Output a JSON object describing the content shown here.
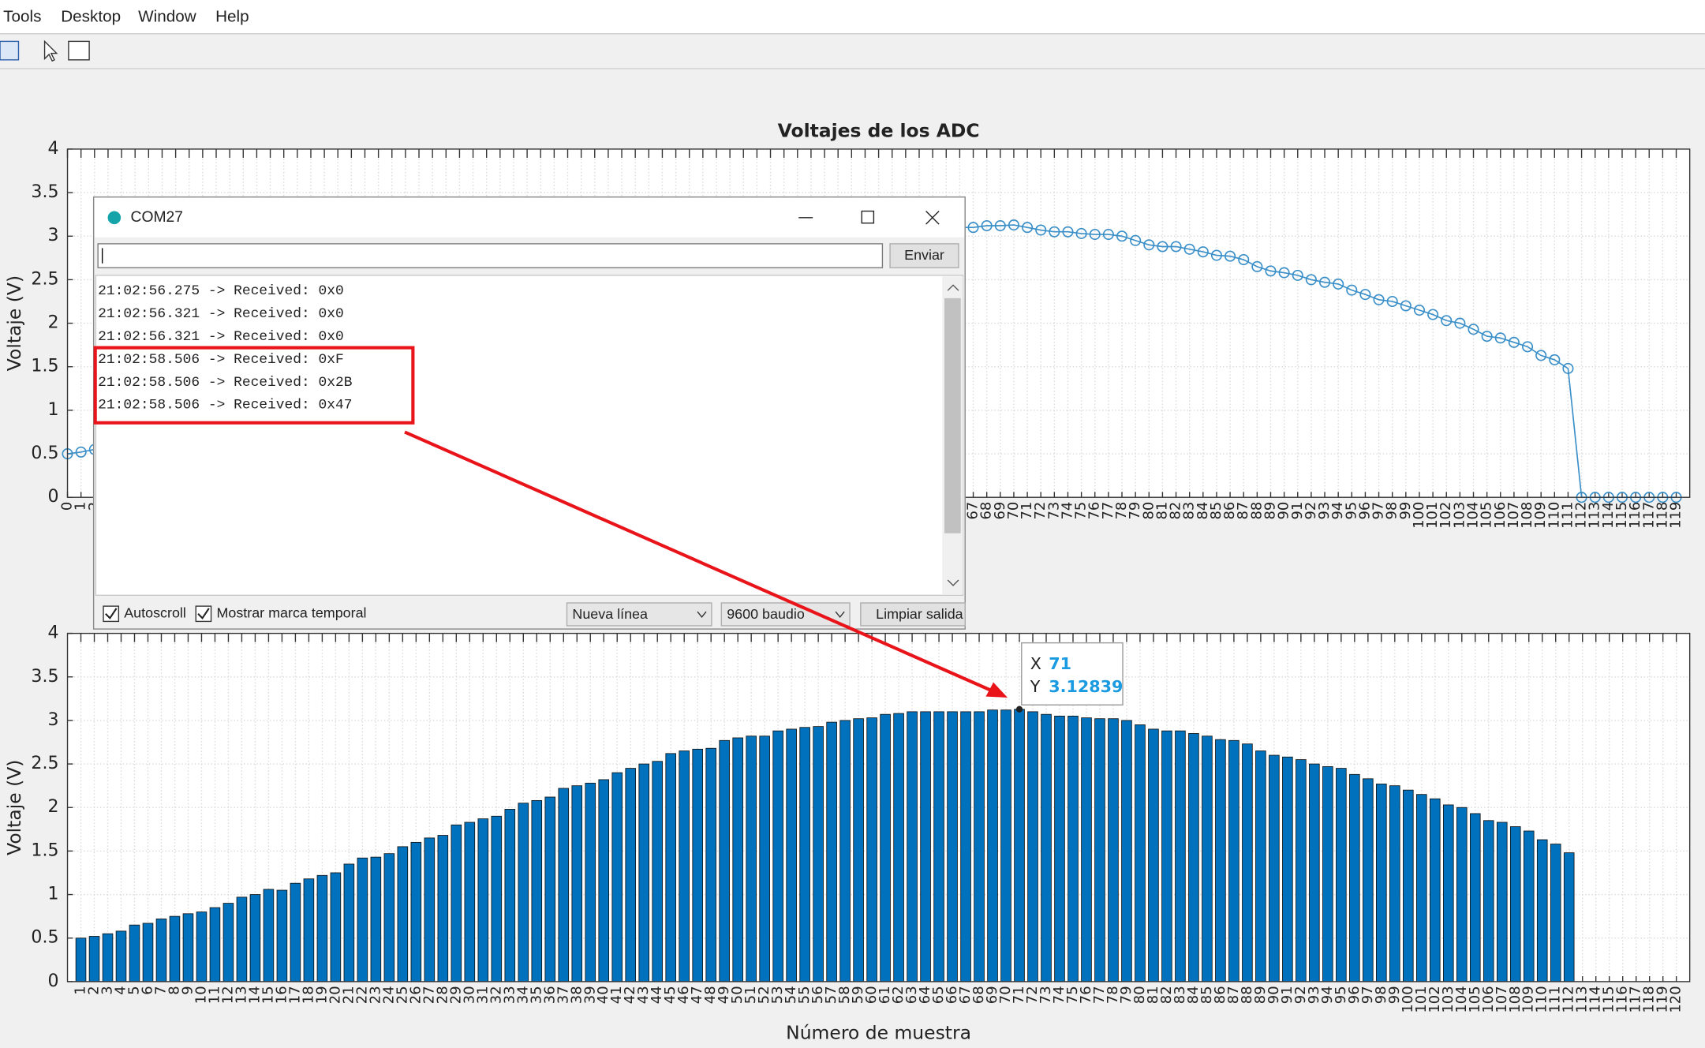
{
  "menu": [
    "Tools",
    "Desktop",
    "Window",
    "Help"
  ],
  "chart_data": [
    {
      "type": "line",
      "title": "Voltajes de los ADC",
      "ylabel": "Voltaje (V)",
      "color": "#3a8fc8",
      "grid": true,
      "xlim": [
        0,
        120
      ],
      "ylim": [
        0,
        4
      ],
      "yticks": [
        0,
        0.5,
        1,
        1.5,
        2,
        2.5,
        3,
        3.5,
        4
      ],
      "x": [
        0,
        1,
        2,
        3,
        4,
        5,
        6,
        7,
        8,
        9,
        10,
        11,
        12,
        13,
        14,
        15,
        16,
        17,
        18,
        19,
        20,
        21,
        22,
        23,
        24,
        25,
        26,
        27,
        28,
        29,
        30,
        31,
        32,
        33,
        34,
        35,
        36,
        37,
        38,
        39,
        40,
        41,
        42,
        43,
        44,
        45,
        46,
        47,
        48,
        49,
        50,
        51,
        52,
        53,
        54,
        55,
        56,
        57,
        58,
        59,
        60,
        61,
        62,
        63,
        64,
        65,
        66,
        67,
        68,
        69,
        70,
        71,
        72,
        73,
        74,
        75,
        76,
        77,
        78,
        79,
        80,
        81,
        82,
        83,
        84,
        85,
        86,
        87,
        88,
        89,
        90,
        91,
        92,
        93,
        94,
        95,
        96,
        97,
        98,
        99,
        100,
        101,
        102,
        103,
        104,
        105,
        106,
        107,
        108,
        109,
        110,
        111,
        112,
        113,
        114,
        115,
        116,
        117,
        118,
        119
      ],
      "values": [
        0.5,
        0.52,
        0.55,
        0.58,
        0.65,
        0.67,
        0.72,
        0.75,
        0.78,
        0.8,
        0.85,
        0.9,
        0.97,
        1.0,
        1.06,
        1.05,
        1.13,
        1.18,
        1.22,
        1.25,
        1.35,
        1.42,
        1.43,
        1.47,
        1.55,
        1.6,
        1.65,
        1.68,
        1.8,
        1.83,
        1.87,
        1.9,
        1.98,
        2.05,
        2.08,
        2.12,
        2.22,
        2.25,
        2.28,
        2.32,
        2.4,
        2.45,
        2.5,
        2.53,
        2.62,
        2.65,
        2.67,
        2.68,
        2.77,
        2.8,
        2.82,
        2.82,
        2.88,
        2.9,
        2.92,
        2.93,
        2.98,
        3.0,
        3.02,
        3.03,
        3.07,
        3.08,
        3.1,
        3.1,
        3.1,
        3.1,
        3.1,
        3.1,
        3.12,
        3.12,
        3.12839,
        3.1,
        3.07,
        3.05,
        3.05,
        3.03,
        3.02,
        3.02,
        3.0,
        2.95,
        2.9,
        2.88,
        2.88,
        2.85,
        2.82,
        2.78,
        2.77,
        2.73,
        2.65,
        2.6,
        2.58,
        2.55,
        2.5,
        2.47,
        2.45,
        2.38,
        2.33,
        2.27,
        2.25,
        2.2,
        2.15,
        2.1,
        2.03,
        2.0,
        1.93,
        1.85,
        1.83,
        1.78,
        1.73,
        1.63,
        1.58,
        1.48,
        0,
        0,
        0,
        0,
        0,
        0,
        0,
        0
      ]
    },
    {
      "type": "bar",
      "ylabel": "Voltaje (V)",
      "xlabel": "Número de muestra",
      "color": "#0072bd",
      "grid": true,
      "xlim": [
        0,
        121
      ],
      "ylim": [
        0,
        4
      ],
      "yticks": [
        0,
        0.5,
        1,
        1.5,
        2,
        2.5,
        3,
        3.5,
        4
      ],
      "x": [
        1,
        2,
        3,
        4,
        5,
        6,
        7,
        8,
        9,
        10,
        11,
        12,
        13,
        14,
        15,
        16,
        17,
        18,
        19,
        20,
        21,
        22,
        23,
        24,
        25,
        26,
        27,
        28,
        29,
        30,
        31,
        32,
        33,
        34,
        35,
        36,
        37,
        38,
        39,
        40,
        41,
        42,
        43,
        44,
        45,
        46,
        47,
        48,
        49,
        50,
        51,
        52,
        53,
        54,
        55,
        56,
        57,
        58,
        59,
        60,
        61,
        62,
        63,
        64,
        65,
        66,
        67,
        68,
        69,
        70,
        71,
        72,
        73,
        74,
        75,
        76,
        77,
        78,
        79,
        80,
        81,
        82,
        83,
        84,
        85,
        86,
        87,
        88,
        89,
        90,
        91,
        92,
        93,
        94,
        95,
        96,
        97,
        98,
        99,
        100,
        101,
        102,
        103,
        104,
        105,
        106,
        107,
        108,
        109,
        110,
        111,
        112,
        113,
        114,
        115,
        116,
        117,
        118,
        119,
        120
      ],
      "values": [
        0.5,
        0.52,
        0.55,
        0.58,
        0.65,
        0.67,
        0.72,
        0.75,
        0.78,
        0.8,
        0.85,
        0.9,
        0.97,
        1.0,
        1.06,
        1.05,
        1.13,
        1.18,
        1.22,
        1.25,
        1.35,
        1.42,
        1.43,
        1.47,
        1.55,
        1.6,
        1.65,
        1.68,
        1.8,
        1.83,
        1.87,
        1.9,
        1.98,
        2.05,
        2.08,
        2.12,
        2.22,
        2.25,
        2.28,
        2.32,
        2.4,
        2.45,
        2.5,
        2.53,
        2.62,
        2.65,
        2.67,
        2.68,
        2.77,
        2.8,
        2.82,
        2.82,
        2.88,
        2.9,
        2.92,
        2.93,
        2.98,
        3.0,
        3.02,
        3.03,
        3.07,
        3.08,
        3.1,
        3.1,
        3.1,
        3.1,
        3.1,
        3.1,
        3.12,
        3.12,
        3.12839,
        3.1,
        3.07,
        3.05,
        3.05,
        3.03,
        3.02,
        3.02,
        3.0,
        2.95,
        2.9,
        2.88,
        2.88,
        2.85,
        2.82,
        2.78,
        2.77,
        2.73,
        2.65,
        2.6,
        2.58,
        2.55,
        2.5,
        2.47,
        2.45,
        2.38,
        2.33,
        2.27,
        2.25,
        2.2,
        2.15,
        2.1,
        2.03,
        2.0,
        1.93,
        1.85,
        1.83,
        1.78,
        1.73,
        1.63,
        1.58,
        1.48,
        0,
        0,
        0,
        0,
        0,
        0,
        0,
        0
      ]
    }
  ],
  "datatip": {
    "x_label": "X",
    "x": 71,
    "y_label": "Y",
    "y": 3.12839
  },
  "serial_monitor": {
    "title": "COM27",
    "send": "Enviar",
    "lines": [
      "21:02:56.275 -> Received: 0x0",
      "21:02:56.321 -> Received: 0x0",
      "21:02:56.321 -> Received: 0x0",
      "21:02:58.506 -> Received: 0xF",
      "21:02:58.506 -> Received: 0x2B",
      "21:02:58.506 -> Received: 0x47"
    ],
    "autoscroll": "Autoscroll",
    "timestamp": "Mostrar marca temporal",
    "line_ending": "Nueva línea",
    "baud": "9600 baudio",
    "clear": "Limpiar salida"
  }
}
